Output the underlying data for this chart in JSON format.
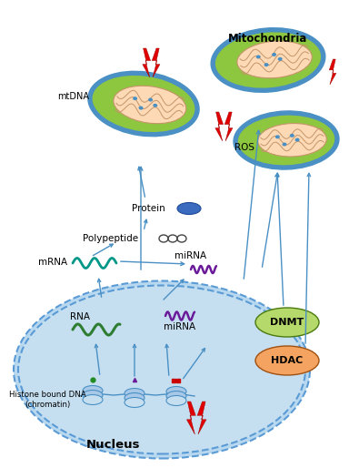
{
  "bg_color": "#ffffff",
  "nucleus_color": "#c5dff0",
  "nucleus_border": "#5b9bd5",
  "mito_outer_color": "#4a90c4",
  "mito_inner_color": "#8dc63f",
  "mito_matrix_color": "#fdd9b5",
  "dnmt_color": "#b5d96a",
  "hdac_color": "#f4a460",
  "rna_color": "#2e7d32",
  "mrna_color": "#009688",
  "mirna_color": "#6a1b9a",
  "protein_color": "#3a6bbf",
  "ros_color": "#e00000",
  "arrow_color": "#4a90c4",
  "labels": {
    "mitochondria": "Mitochondria",
    "mtdna": "mtDNA",
    "ros": "ROS",
    "protein": "Protein",
    "polypeptide": "Polypeptide",
    "mrna_out": "mRNA",
    "mrna_in": "mRNA",
    "mirna_out": "miRNA",
    "mirna_in": "miRNA",
    "rna": "RNA",
    "histone": "Histone bound DNA\n(chromatin)",
    "nucleus": "Nucleus",
    "dnmt": "DNMT",
    "hdac": "HDAC"
  }
}
